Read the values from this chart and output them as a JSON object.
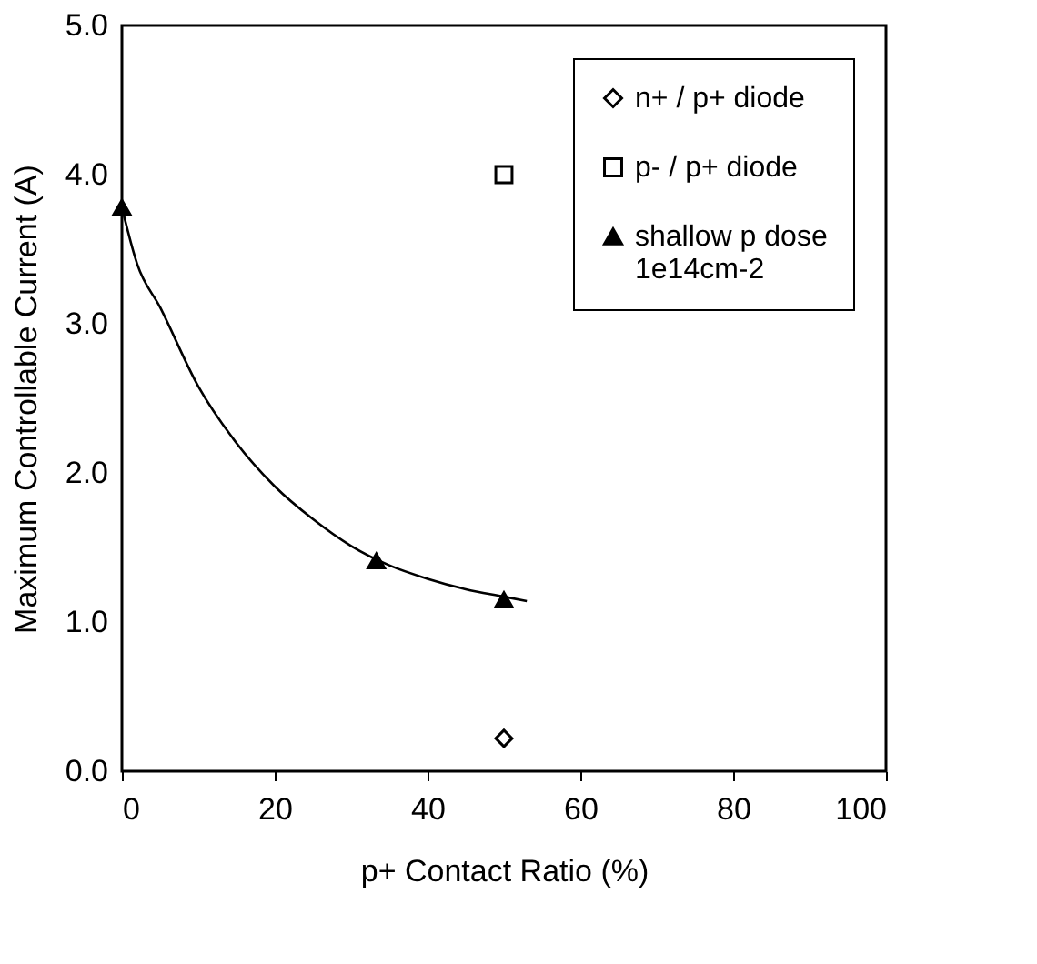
{
  "chart_data": {
    "type": "scatter",
    "xlabel": "p+ Contact Ratio (%)",
    "ylabel": "Maximum Controllable Current (A)",
    "xlim": [
      0,
      100
    ],
    "xticks": [
      0,
      20,
      40,
      60,
      80,
      100
    ],
    "ylim": [
      0,
      5
    ],
    "yticks": [
      {
        "value": 0,
        "label": "0.0"
      },
      {
        "value": 1,
        "label": "1.0"
      },
      {
        "value": 2,
        "label": "2.0"
      },
      {
        "value": 3,
        "label": "3.0"
      },
      {
        "value": 4,
        "label": "4.0"
      },
      {
        "value": 5,
        "label": "5.0"
      }
    ],
    "grid": false,
    "legend": "top right",
    "series": [
      {
        "name": "n+ / p+ diode",
        "color": "#000000",
        "marker": "diamond",
        "x": [
          50
        ],
        "values": [
          0.22
        ]
      },
      {
        "name": "p- / p+ diode",
        "color": "#000000",
        "marker": "square",
        "x": [
          50
        ],
        "values": [
          4.0
        ]
      },
      {
        "name": "shallow p dose\n1e14cm-2",
        "color": "#000000",
        "marker": "triangle",
        "x": [
          0,
          33.3,
          50
        ],
        "values": [
          3.78,
          1.41,
          1.15
        ]
      },
      {
        "type": "line",
        "color": "#000000",
        "marker": "none",
        "line_style": "solid",
        "x": [
          0,
          2,
          5,
          10,
          15,
          20,
          25,
          30,
          35,
          40,
          45,
          50,
          53
        ],
        "values": [
          3.78,
          3.4,
          3.11,
          2.58,
          2.2,
          1.91,
          1.69,
          1.51,
          1.38,
          1.29,
          1.22,
          1.17,
          1.14
        ]
      }
    ]
  }
}
